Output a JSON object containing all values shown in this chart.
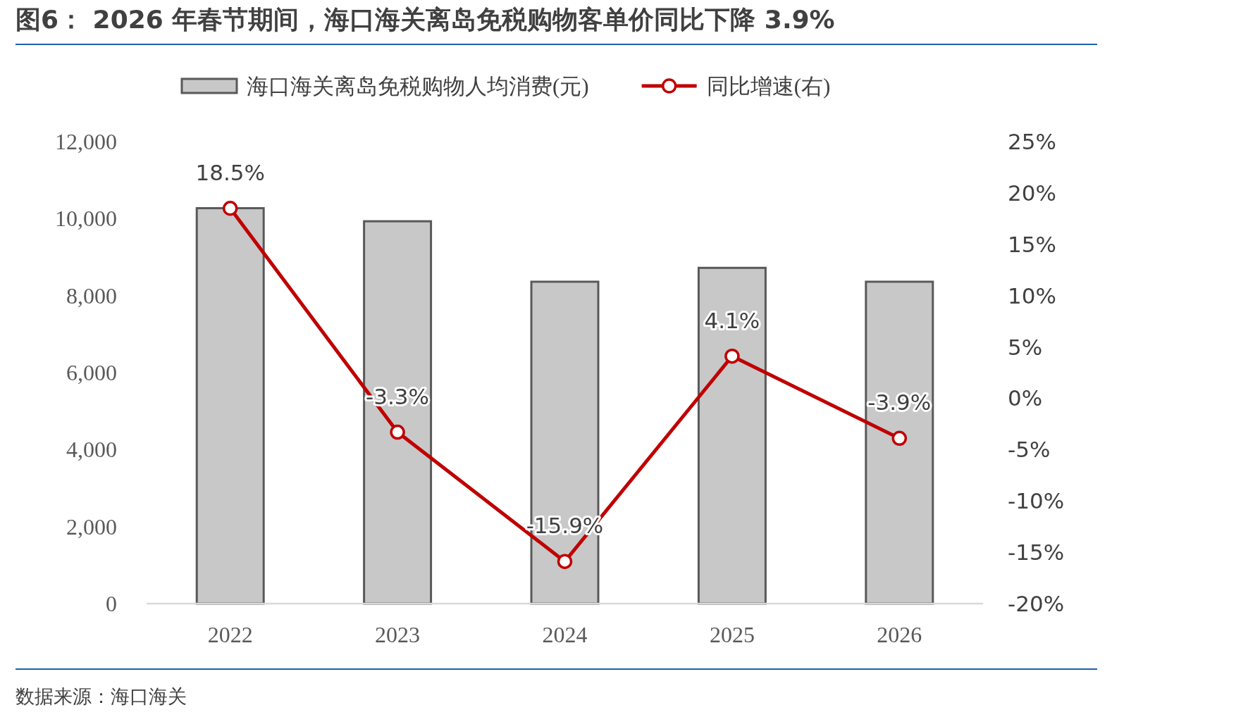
{
  "chart_data": {
    "type": "bar",
    "title": "图6： 2026 年春节期间，海口海关离岛免税购物客单价同比下降 3.9%",
    "annotations": [
      "数据来源：海口海关"
    ],
    "categories": [
      "2022",
      "2023",
      "2024",
      "2025",
      "2026"
    ],
    "series": [
      {
        "name": "海口海关离岛免税购物人均消费(元)",
        "color": "#c8c8c8",
        "values": [
          10270,
          9930,
          8360,
          8720,
          8360
        ]
      },
      {
        "name": "同比增速(右)",
        "type": "line",
        "axis": "y2",
        "color": "#c00000",
        "marker": "circle",
        "values": [
          18.5,
          -3.3,
          -15.9,
          4.1,
          -3.9
        ],
        "value_labels": [
          "18.5%",
          "-3.3%",
          "-15.9%",
          "4.1%",
          "-3.9%"
        ]
      }
    ],
    "ylim": [
      0,
      12000
    ],
    "yticks": [
      {
        "value": 0,
        "label": "0"
      },
      {
        "value": 2000,
        "label": "2,000"
      },
      {
        "value": 4000,
        "label": "4,000"
      },
      {
        "value": 6000,
        "label": "6,000"
      },
      {
        "value": 8000,
        "label": "8,000"
      },
      {
        "value": 10000,
        "label": "10,000"
      },
      {
        "value": 12000,
        "label": "12,000"
      }
    ],
    "y2lim": [
      -20,
      25
    ],
    "y2ticks": [
      {
        "value": -20,
        "label": "-20%"
      },
      {
        "value": -15,
        "label": "-15%"
      },
      {
        "value": -10,
        "label": "-10%"
      },
      {
        "value": -5,
        "label": "-5%"
      },
      {
        "value": 0,
        "label": "0%"
      },
      {
        "value": 5,
        "label": "5%"
      },
      {
        "value": 10,
        "label": "10%"
      },
      {
        "value": 15,
        "label": "15%"
      },
      {
        "value": 20,
        "label": "20%"
      },
      {
        "value": 25,
        "label": "25%"
      }
    ],
    "legend": "top"
  }
}
